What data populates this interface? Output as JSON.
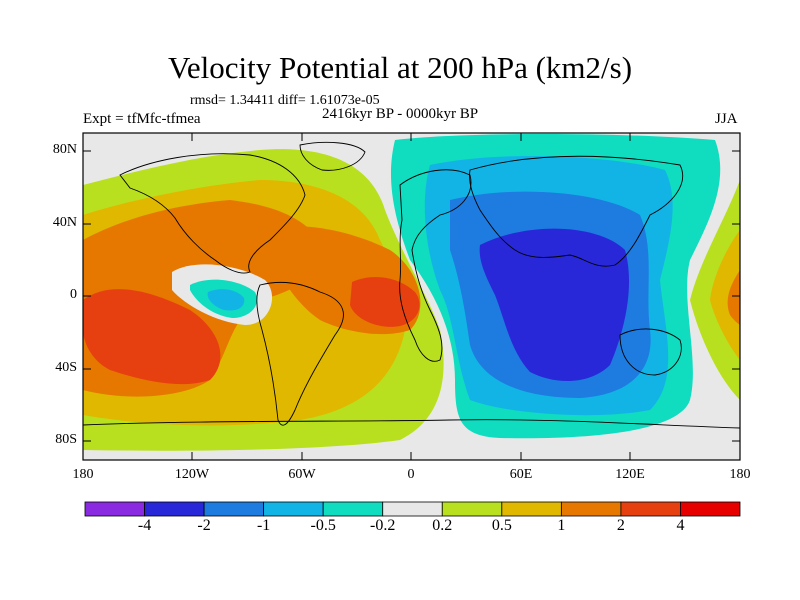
{
  "title": "Velocity Potential at 200 hPa (km2/s)",
  "stats": "rmsd= 1.34411 diff= 1.61073e-05",
  "experiment": "Expt = tfMfc-tfmea",
  "period": "2416kyr BP - 0000kyr BP",
  "season": "JJA",
  "lat_labels": [
    "80N",
    "40N",
    "0",
    "40S",
    "80S"
  ],
  "lon_labels": [
    "180",
    "120W",
    "60W",
    "0",
    "60E",
    "120E",
    "180"
  ],
  "colorbar": {
    "labels": [
      "-4",
      "-2",
      "-1",
      "-0.5",
      "-0.2",
      "0.2",
      "0.5",
      "1",
      "2",
      "4"
    ],
    "colors": [
      "#8a2be2",
      "#2828d8",
      "#1e7be0",
      "#12b4e6",
      "#10dcc0",
      "#e8e8e8",
      "#b8e01e",
      "#e0b800",
      "#e67800",
      "#e64010",
      "#e60000"
    ]
  }
}
